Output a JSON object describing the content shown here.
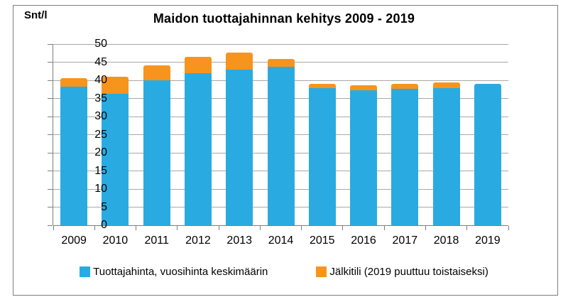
{
  "chart_data": {
    "type": "bar",
    "stacked": true,
    "title": "Maidon tuottajahinnan kehitys 2009 - 2019",
    "y_unit_label": "Snt/l",
    "categories": [
      "2009",
      "2010",
      "2011",
      "2012",
      "2013",
      "2014",
      "2015",
      "2016",
      "2017",
      "2018",
      "2019"
    ],
    "series": [
      {
        "name": "Tuottajahinta, vuosihinta keskimäärin",
        "color": "#29ABE2",
        "values": [
          38.3,
          36.3,
          40.0,
          42.0,
          43.0,
          43.8,
          37.9,
          37.3,
          37.7,
          37.8,
          39.0
        ]
      },
      {
        "name": "Jälkitili (2019 puuttuu toistaiseksi)",
        "color": "#F7941D",
        "values": [
          2.2,
          4.7,
          4.1,
          4.5,
          4.6,
          2.0,
          1.1,
          1.3,
          1.3,
          1.7,
          0
        ]
      }
    ],
    "stack_totals": [
      40.5,
      41.0,
      44.1,
      46.5,
      47.6,
      45.8,
      39.0,
      38.6,
      39.0,
      39.5,
      39.0
    ],
    "ylim": [
      0,
      50
    ],
    "ytick_step": 5,
    "grid": true,
    "legend_position": "bottom",
    "colors": {
      "gridline": "#A8A8A8",
      "axis": "#7F7F7F",
      "border": "#7F7F7F",
      "text": "#000000",
      "background": "#FFFFFF"
    }
  }
}
